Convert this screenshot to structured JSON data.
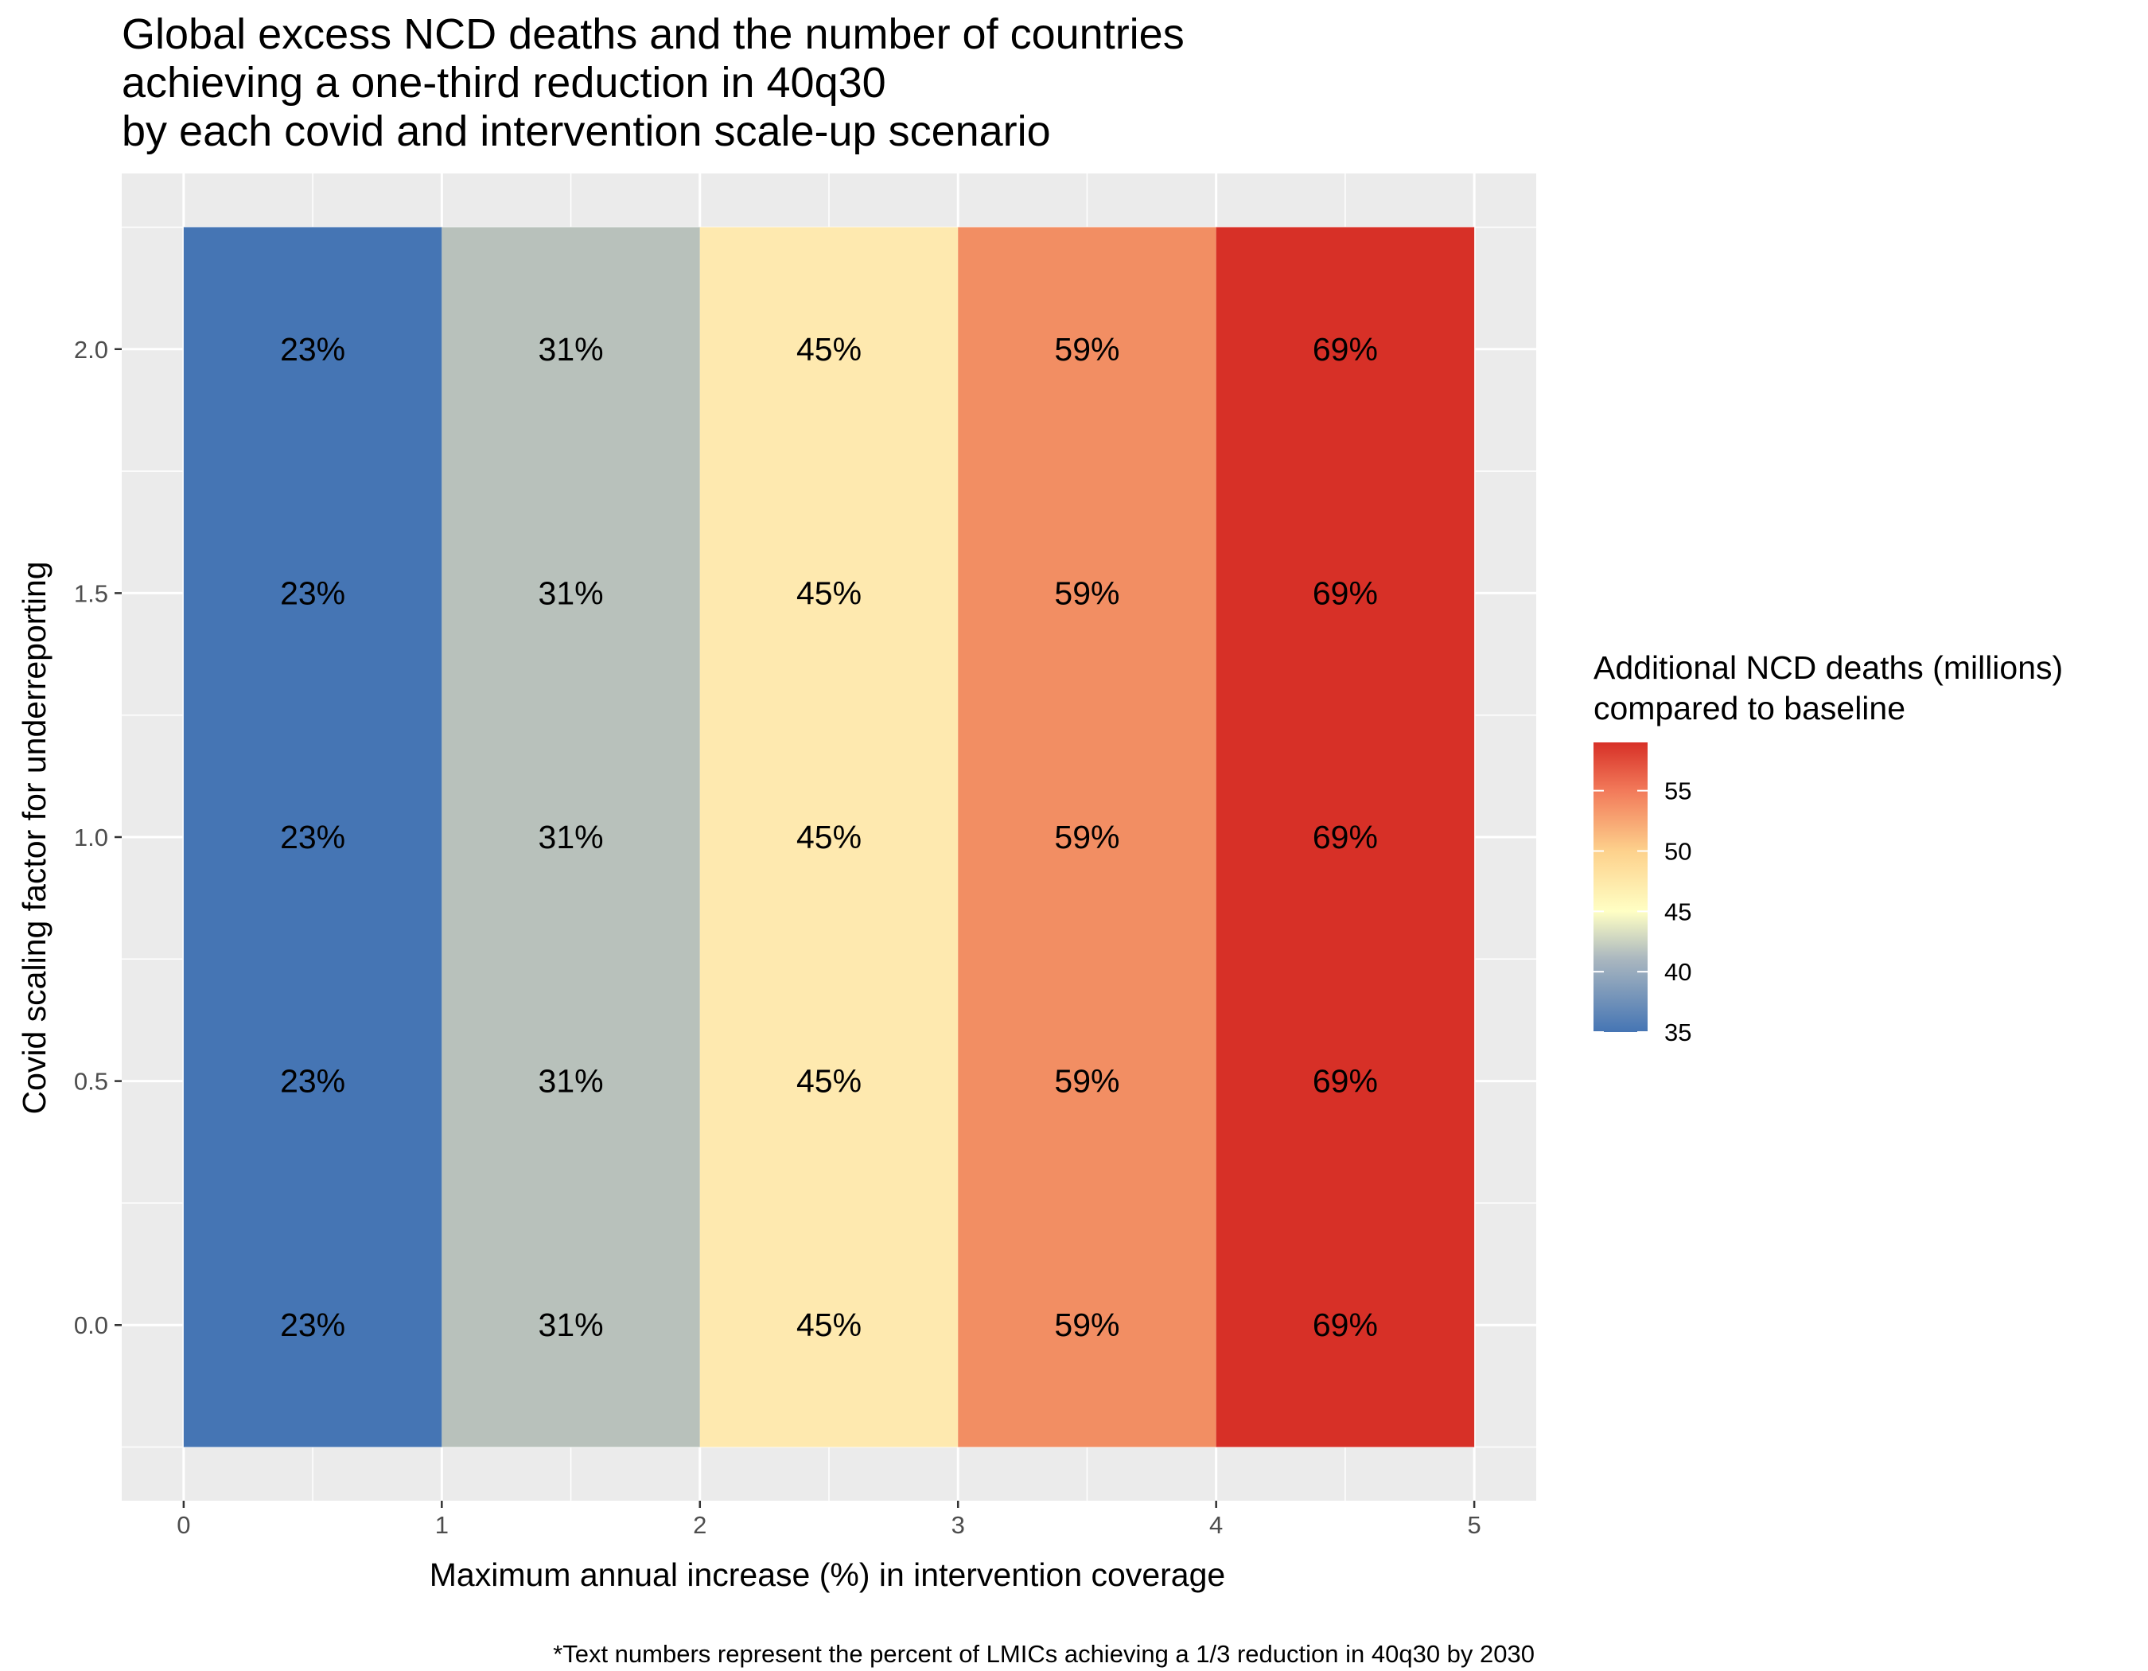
{
  "chart_data": {
    "type": "heatmap",
    "title_lines": [
      "Global excess NCD deaths and the number of countries",
      "achieving a one-third reduction in 40q30",
      "by each covid and intervention scale-up scenario"
    ],
    "xlabel": "Maximum annual increase (%) in intervention coverage",
    "ylabel": "Covid scaling factor for underreporting",
    "caption": "*Text numbers represent the percent of LMICs achieving a 1/3 reduction in 40q30 by 2030",
    "xlim": [
      -0.24,
      5.24
    ],
    "ylim": [
      -0.36,
      2.36
    ],
    "x_ticks": [
      0,
      1,
      2,
      3,
      4,
      5
    ],
    "x_tick_labels": [
      "0",
      "1",
      "2",
      "3",
      "4",
      "5"
    ],
    "y_ticks": [
      0.0,
      0.5,
      1.0,
      1.5,
      2.0
    ],
    "y_tick_labels": [
      "0.0",
      "0.5",
      "1.0",
      "1.5",
      "2.0"
    ],
    "grid": true,
    "background": "#ebebeb",
    "columns": [
      {
        "x_range": [
          0,
          1
        ],
        "label_x": 0.5,
        "fill_value": 35.0,
        "color": "#4575b4"
      },
      {
        "x_range": [
          1,
          2
        ],
        "label_x": 1.5,
        "fill_value": 42.0,
        "color": "#b8c1bb"
      },
      {
        "x_range": [
          2,
          3
        ],
        "label_x": 2.5,
        "fill_value": 47.5,
        "color": "#fee9af"
      },
      {
        "x_range": [
          3,
          4
        ],
        "label_x": 3.5,
        "fill_value": 54.0,
        "color": "#f28e63"
      },
      {
        "x_range": [
          4,
          5
        ],
        "label_x": 4.5,
        "fill_value": 59.0,
        "color": "#d73027"
      }
    ],
    "y_range": [
      -0.25,
      2.25
    ],
    "cell_y_values": [
      0.0,
      0.5,
      1.0,
      1.5,
      2.0
    ],
    "cell_labels": [
      [
        "23%",
        "31%",
        "45%",
        "59%",
        "69%"
      ],
      [
        "23%",
        "31%",
        "45%",
        "59%",
        "69%"
      ],
      [
        "23%",
        "31%",
        "45%",
        "59%",
        "69%"
      ],
      [
        "23%",
        "31%",
        "45%",
        "59%",
        "69%"
      ],
      [
        "23%",
        "31%",
        "45%",
        "59%",
        "69%"
      ]
    ],
    "legend": {
      "title_lines": [
        "Additional NCD deaths (millions)",
        "compared to baseline"
      ],
      "placement": "right",
      "range": [
        35,
        59
      ],
      "ticks": [
        35,
        40,
        45,
        50,
        55
      ],
      "tick_labels": [
        "35",
        "40",
        "45",
        "50",
        "55"
      ],
      "gradient_stops": [
        {
          "value": 35,
          "color": "#4575b4"
        },
        {
          "value": 41,
          "color": "#a9b6bf"
        },
        {
          "value": 45,
          "color": "#ffffc4"
        },
        {
          "value": 50,
          "color": "#fdd18c"
        },
        {
          "value": 55,
          "color": "#f27a5a"
        },
        {
          "value": 59,
          "color": "#d73027"
        }
      ]
    }
  }
}
